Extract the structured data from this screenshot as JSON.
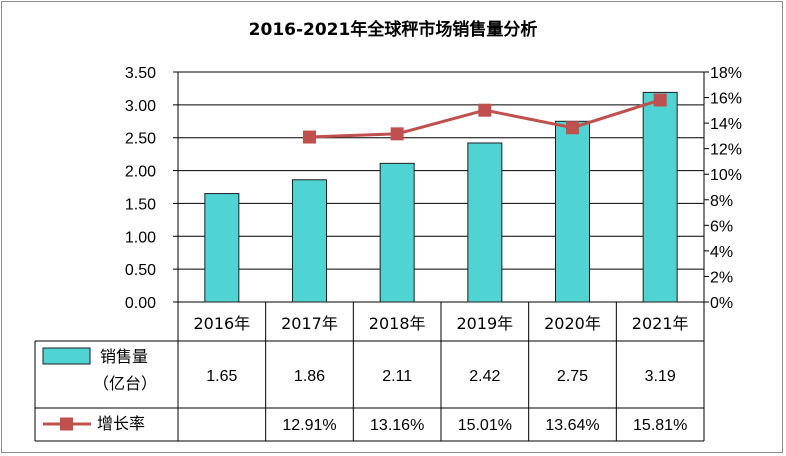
{
  "colors": {
    "bar_fill": "#4fd3d3",
    "bar_stroke": "#1f1f1f",
    "line": "#c0504d",
    "grid": "#000000"
  },
  "chart_data": {
    "type": "bar",
    "title": "2016-2021年全球秤市场销售量分析",
    "categories": [
      "2016年",
      "2017年",
      "2018年",
      "2019年",
      "2020年",
      "2021年"
    ],
    "series": [
      {
        "name": "销售量（亿台）",
        "type": "bar",
        "axis": "left",
        "values": [
          1.65,
          1.86,
          2.11,
          2.42,
          2.75,
          3.19
        ],
        "labels": [
          "1.65",
          "1.86",
          "2.11",
          "2.42",
          "2.75",
          "3.19"
        ]
      },
      {
        "name": "增长率",
        "type": "line",
        "axis": "right",
        "values": [
          null,
          12.91,
          13.16,
          15.01,
          13.64,
          15.81
        ],
        "labels": [
          "",
          "12.91%",
          "13.16%",
          "15.01%",
          "13.64%",
          "15.81%"
        ]
      }
    ],
    "y_left": {
      "range": [
        0,
        3.5
      ],
      "ticks": [
        "0.00",
        "0.50",
        "1.00",
        "1.50",
        "2.00",
        "2.50",
        "3.00",
        "3.50"
      ]
    },
    "y_right": {
      "range": [
        0,
        18
      ],
      "ticks": [
        "0%",
        "2%",
        "4%",
        "6%",
        "8%",
        "10%",
        "12%",
        "14%",
        "16%",
        "18%"
      ]
    },
    "grid": true,
    "legend": "data-table",
    "legend_labels": {
      "sales_line1": "销售量",
      "sales_line2": "（亿台）",
      "growth": "增长率"
    }
  }
}
